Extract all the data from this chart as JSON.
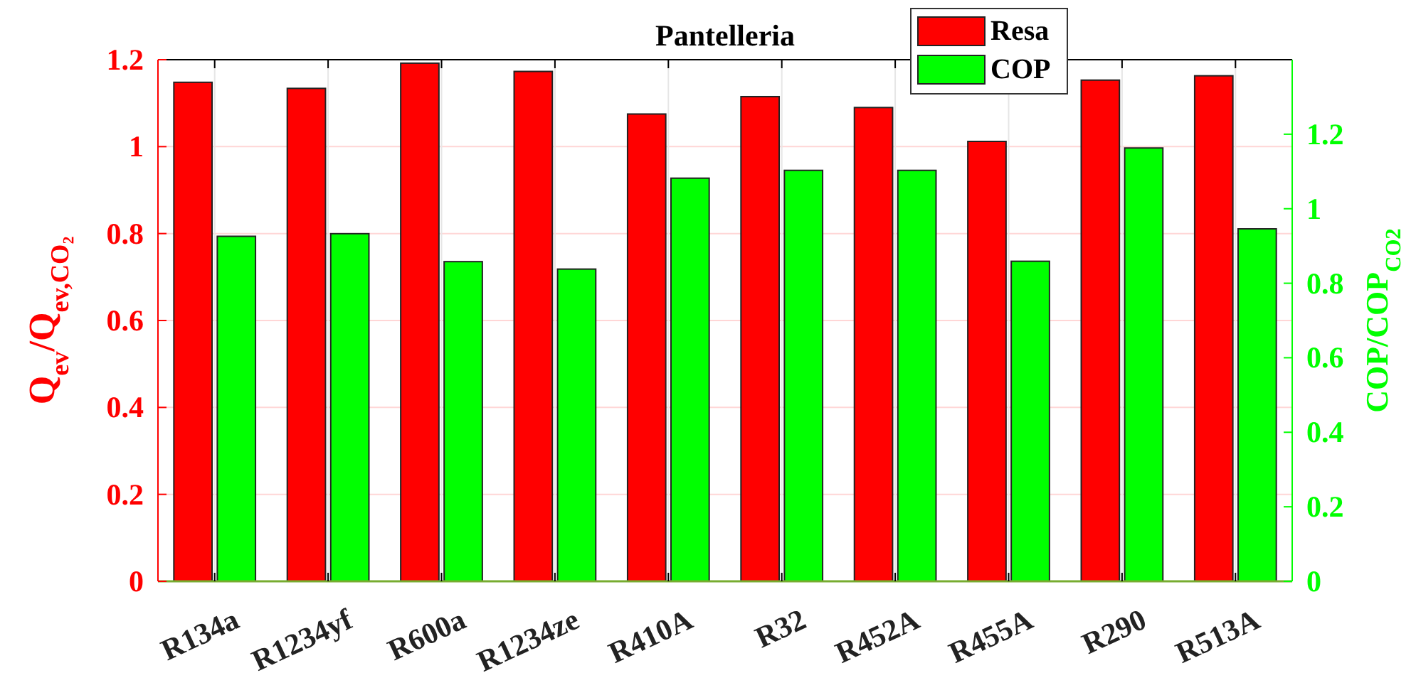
{
  "chart_data": {
    "type": "bar",
    "title": "Pantelleria",
    "categories": [
      "R134a",
      "R1234yf",
      "R600a",
      "R1234ze",
      "R410A",
      "R32",
      "R452A",
      "R455A",
      "R290",
      "R513A"
    ],
    "series": [
      {
        "name": "Resa",
        "color": "#ff0000",
        "values": [
          1.148,
          1.134,
          1.192,
          1.173,
          1.075,
          1.115,
          1.09,
          1.012,
          1.153,
          1.163
        ]
      },
      {
        "name": "COP",
        "color": "#00ff00",
        "axis": "y2",
        "values": [
          0.926,
          0.933,
          0.858,
          0.838,
          1.082,
          1.103,
          1.103,
          0.859,
          1.163,
          0.946
        ]
      }
    ],
    "ylabel": "Q$_{ev}$/Q$_{ev,CO₂}$",
    "y2label": "COP/COP$_{CO2}$",
    "ylim": [
      0,
      1.2
    ],
    "yticks": [
      0,
      0.2,
      0.4,
      0.6,
      0.8,
      1,
      1.2
    ],
    "y2lim": [
      0,
      1.4
    ],
    "y2ticks": [
      0,
      0.2,
      0.4,
      0.6,
      0.8,
      1,
      1.2
    ],
    "grid": true,
    "legend": "top"
  }
}
